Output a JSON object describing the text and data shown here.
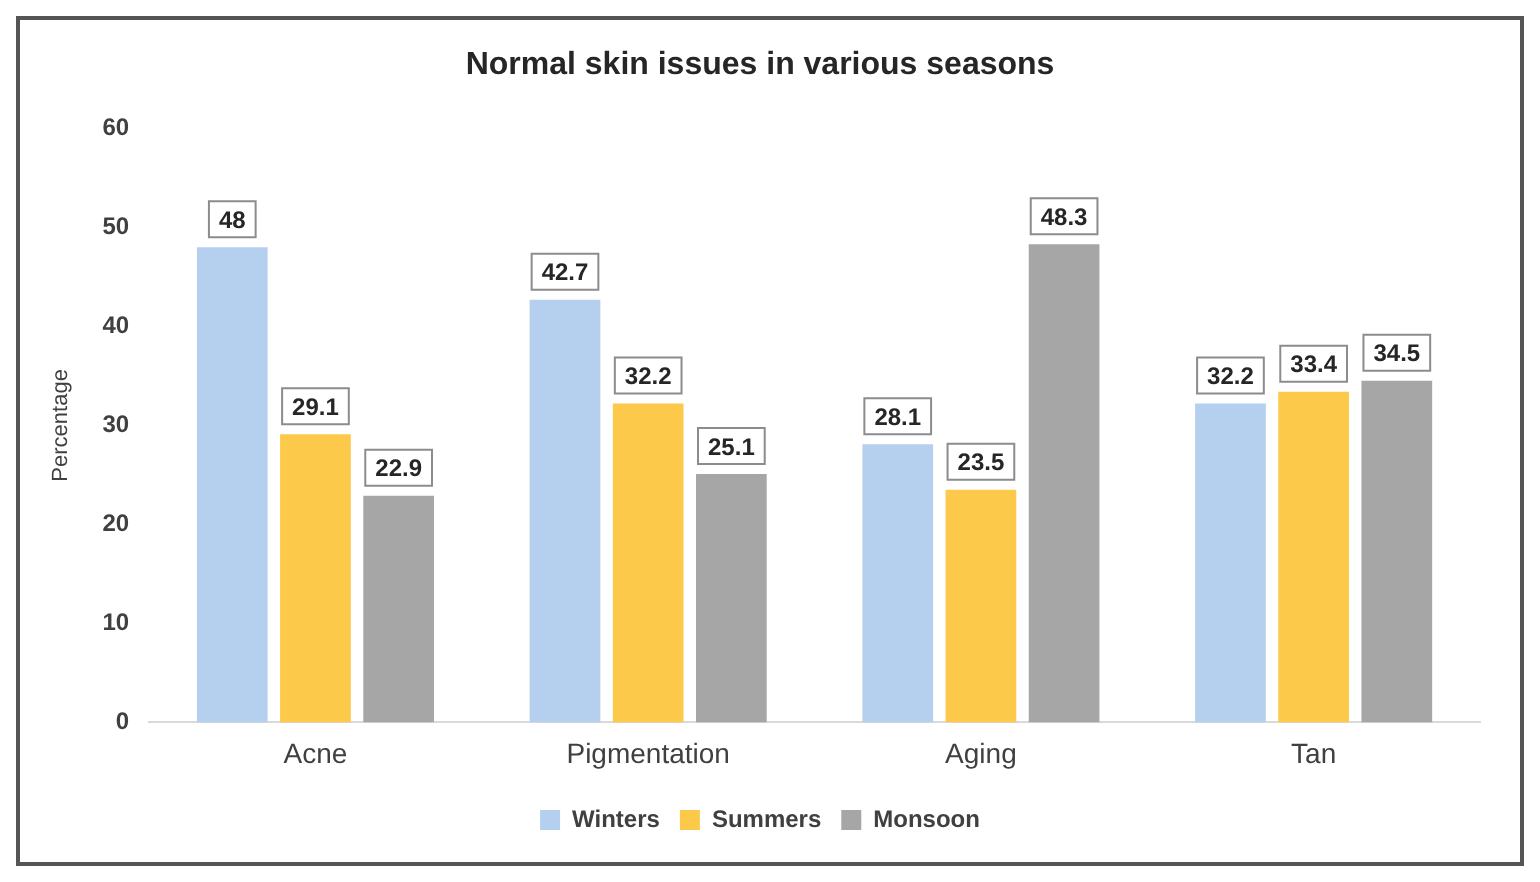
{
  "chart_data": {
    "type": "bar",
    "title": "Normal skin issues in various seasons",
    "ylabel": "Percentage",
    "categories": [
      "Acne",
      "Pigmentation",
      "Aging",
      "Tan"
    ],
    "series": [
      {
        "name": "Winters",
        "color": "#b4d0ee",
        "values": [
          48,
          42.7,
          28.1,
          32.2
        ]
      },
      {
        "name": "Summers",
        "color": "#fdc94a",
        "values": [
          29.1,
          32.2,
          23.5,
          33.4
        ]
      },
      {
        "name": "Monsoon",
        "color": "#a6a6a6",
        "values": [
          22.9,
          25.1,
          48.3,
          34.5
        ]
      }
    ],
    "ylim": [
      0,
      60
    ],
    "yticks": [
      0,
      10,
      20,
      30,
      40,
      50,
      60
    ],
    "grid": false,
    "legend": "bottom",
    "data_labels": true
  }
}
